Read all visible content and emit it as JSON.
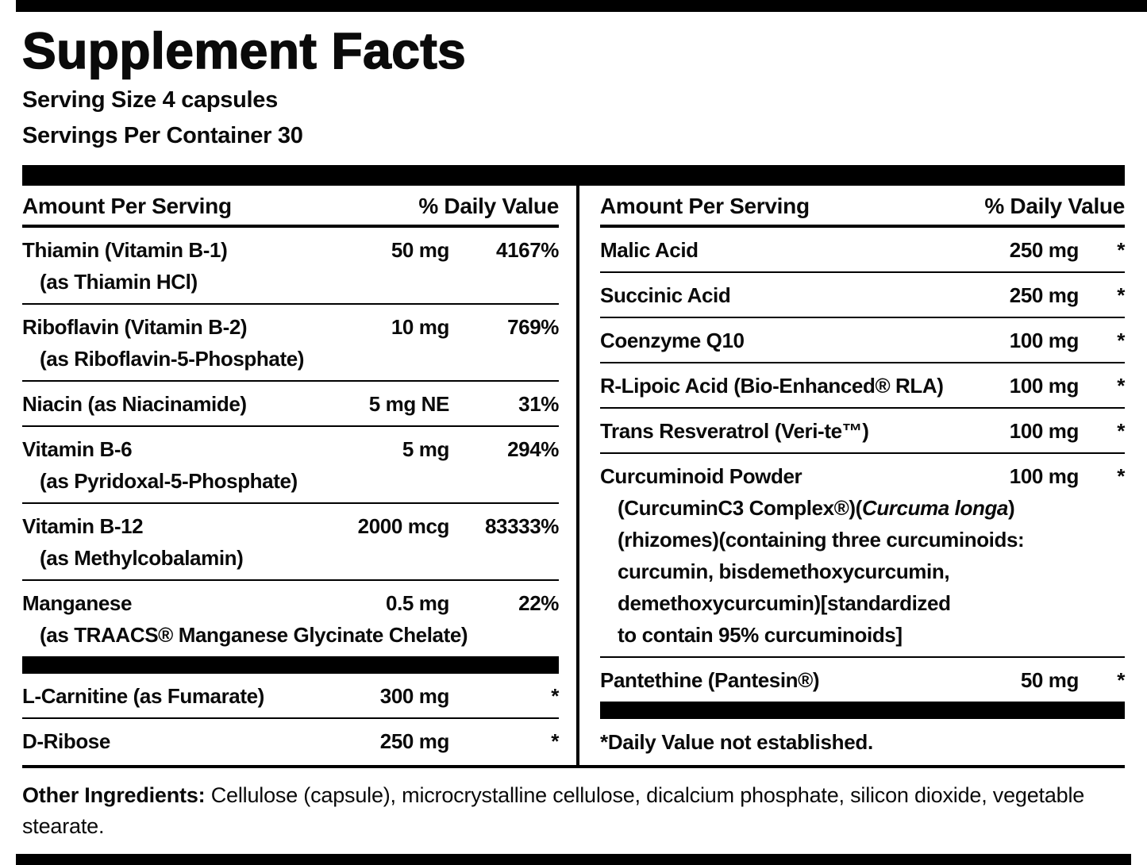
{
  "title": "Supplement Facts",
  "serving_size": "Serving Size 4 capsules",
  "servings_per_container": "Servings Per Container 30",
  "columns": {
    "left": {
      "header_amount": "Amount Per Serving",
      "header_dv": "% Daily Value",
      "rows": [
        {
          "name": "Thiamin (Vitamin B-1)",
          "sub": "(as Thiamin HCl)",
          "amount": "50 mg",
          "dv": "4167%"
        },
        {
          "name": "Riboflavin (Vitamin B-2)",
          "sub": "(as Riboflavin-5-Phosphate)",
          "amount": "10 mg",
          "dv": "769%"
        },
        {
          "name": "Niacin (as Niacinamide)",
          "amount": "5 mg NE",
          "dv": "31%"
        },
        {
          "name": "Vitamin B-6",
          "sub": "(as Pyridoxal-5-Phosphate)",
          "amount": "5 mg",
          "dv": "294%"
        },
        {
          "name": "Vitamin B-12",
          "sub": "(as Methylcobalamin)",
          "amount": "2000 mcg",
          "dv": "83333%"
        },
        {
          "name": "Manganese",
          "sub": "(as TRAACS® Manganese Glycinate Chelate)",
          "amount": "0.5 mg",
          "dv": "22%"
        }
      ],
      "rows_after_bar": [
        {
          "name": "L-Carnitine (as Fumarate)",
          "amount": "300 mg",
          "dv": "*"
        },
        {
          "name": "D-Ribose",
          "amount": "250 mg",
          "dv": "*"
        }
      ]
    },
    "right": {
      "header_amount": "Amount Per Serving",
      "header_dv": "% Daily Value",
      "rows": [
        {
          "name": "Malic Acid",
          "amount": "250 mg",
          "dv": "*"
        },
        {
          "name": "Succinic Acid",
          "amount": "250 mg",
          "dv": "*"
        },
        {
          "name": "Coenzyme Q10",
          "amount": "100 mg",
          "dv": "*"
        },
        {
          "name": "R-Lipoic Acid (Bio-Enhanced® RLA)",
          "amount": "100 mg",
          "dv": "*"
        },
        {
          "name": "Trans Resveratrol (Veri-te™)",
          "amount": "100 mg",
          "dv": "*"
        },
        {
          "name": "Curcuminoid Powder",
          "amount": "100 mg",
          "dv": "*",
          "sub1_prefix": "(CurcuminC3 Complex®)(",
          "sub1_italic": "Curcuma longa",
          "sub1_suffix": ")",
          "sub2": "(rhizomes)(containing three curcuminoids:",
          "sub3": "curcumin, bisdemethoxycurcumin,",
          "sub4": "demethoxycurcumin)[standardized",
          "sub5": "to contain 95% curcuminoids]"
        },
        {
          "name": "Pantethine (Pantesin®)",
          "amount": "50 mg",
          "dv": "*"
        }
      ],
      "footnote": "*Daily Value not established."
    }
  },
  "other_ingredients_label": "Other Ingredients:",
  "other_ingredients_text": "Cellulose (capsule), microcrystalline cellulose, dicalcium phosphate, silicon dioxide, vegetable stearate."
}
